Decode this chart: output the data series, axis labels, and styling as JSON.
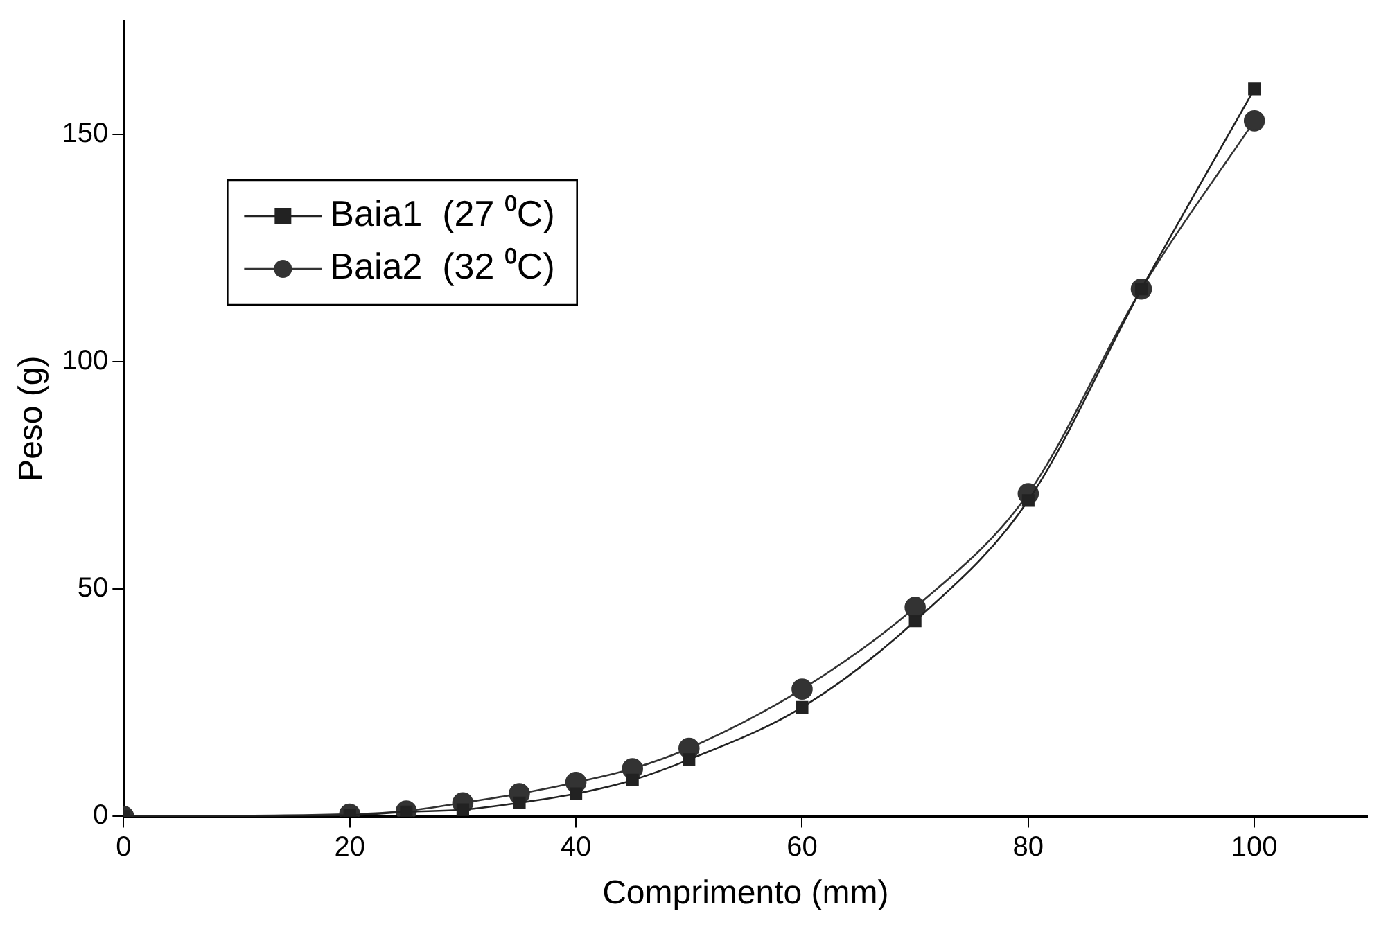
{
  "chart_data": {
    "type": "line",
    "xlabel": "Comprimento (mm)",
    "ylabel": "Peso (g)",
    "xlim": [
      0,
      110
    ],
    "xticks": [
      0,
      20,
      40,
      60,
      80,
      100
    ],
    "ylim": [
      0,
      175
    ],
    "yticks": [
      0,
      50,
      100,
      150
    ],
    "grid": false,
    "legend": "top left",
    "line_style": "solid",
    "series": [
      {
        "name": "Baia1  (27 ⁰C)",
        "color": "#222222",
        "marker": "square",
        "x": [
          0,
          20,
          25,
          30,
          35,
          40,
          45,
          50,
          60,
          70,
          80,
          90,
          100
        ],
        "values": [
          0,
          0.3,
          1,
          1.5,
          3,
          5,
          8,
          12.5,
          24,
          43,
          69.5,
          116,
          160
        ]
      },
      {
        "name": "Baia2  (32 ⁰C)",
        "color": "#333333",
        "marker": "circle",
        "x": [
          0,
          20,
          25,
          30,
          35,
          40,
          45,
          50,
          60,
          70,
          80,
          90,
          100
        ],
        "values": [
          0,
          0.5,
          1.2,
          3,
          5,
          7.5,
          10.5,
          15,
          28,
          46,
          71,
          116,
          153
        ]
      }
    ]
  }
}
